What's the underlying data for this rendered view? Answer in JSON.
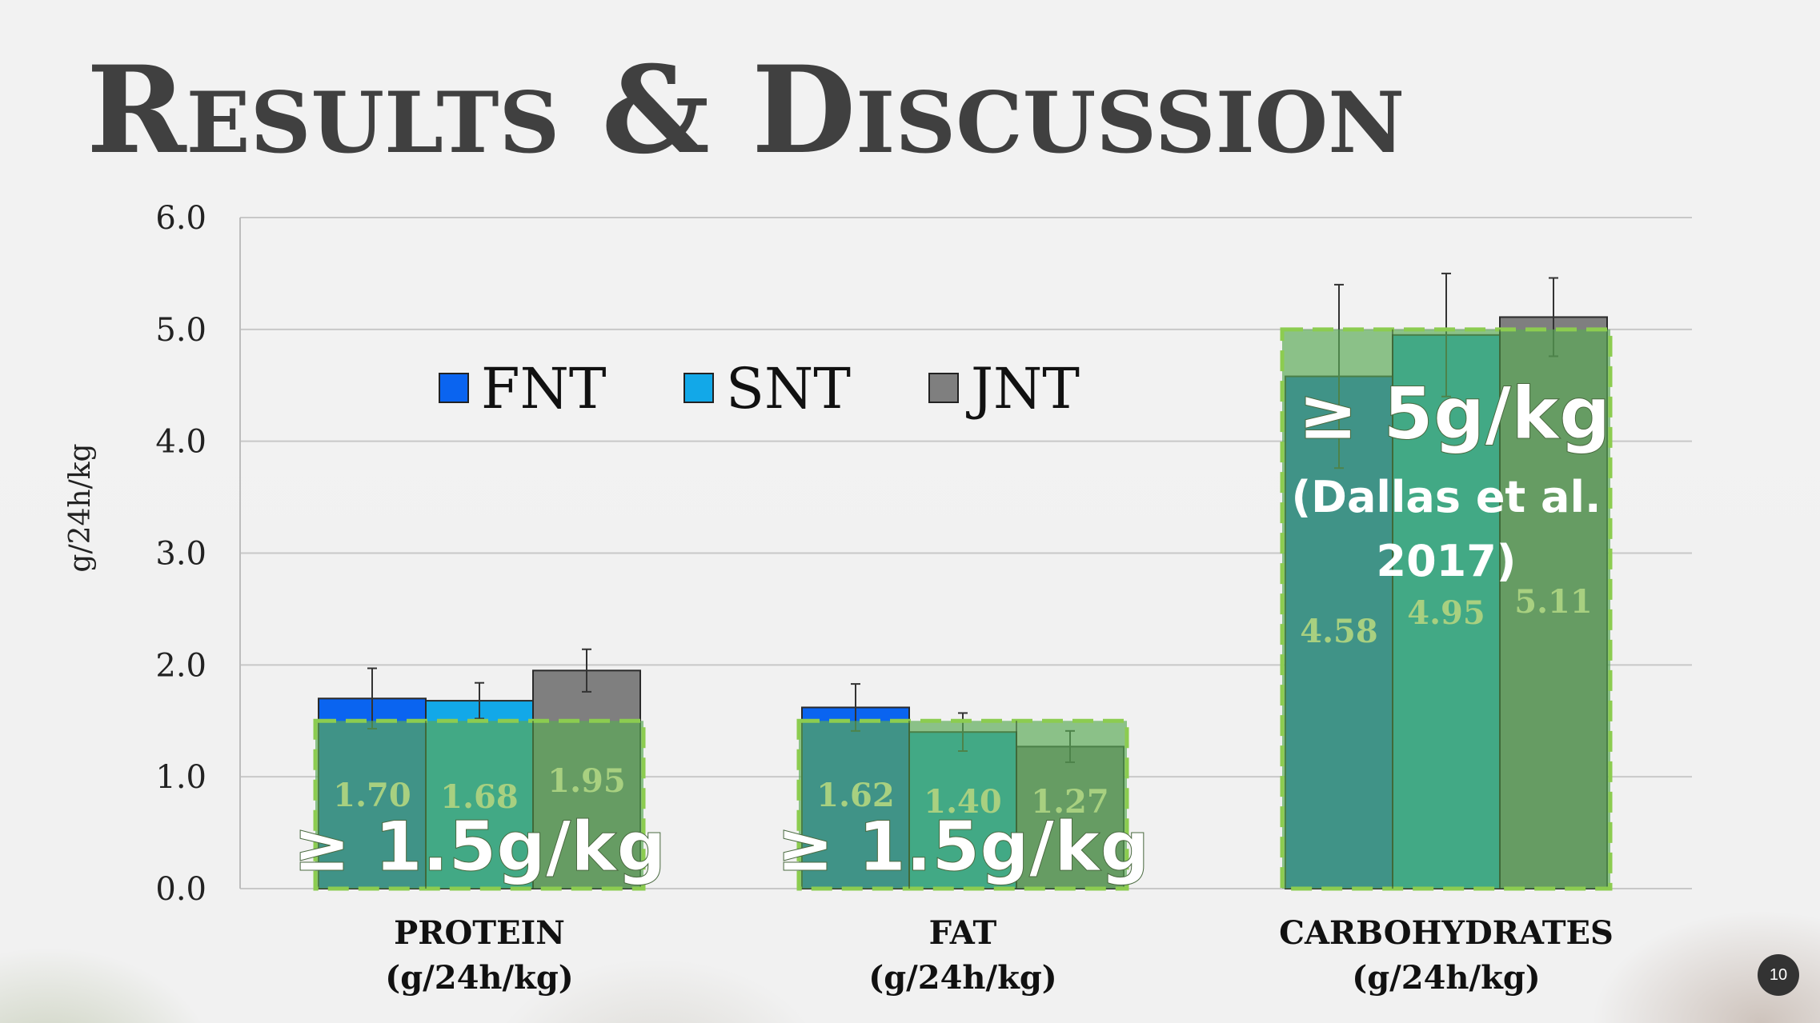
{
  "title": "Results & Discussion",
  "page_number": "10",
  "colors": {
    "FNT": "#0a64f0",
    "SNT": "#12a8e8",
    "JNT": "#7f7f7f",
    "overlay_fill": "#5aaa55",
    "overlay_border": "#8ccc50",
    "label_color": "#a8d080"
  },
  "chart_data": {
    "type": "bar",
    "ylabel": "g/24h/kg",
    "ylim": [
      0,
      6
    ],
    "yticks": [
      "0.0",
      "1.0",
      "2.0",
      "3.0",
      "4.0",
      "5.0",
      "6.0"
    ],
    "legend_position": "top-center",
    "grid": true,
    "categories": [
      {
        "line1": "PROTEIN",
        "line2": "(g/24h/kg)"
      },
      {
        "line1": "FAT",
        "line2": "(g/24h/kg)"
      },
      {
        "line1": "CARBOHYDRATES",
        "line2": "(g/24h/kg)"
      }
    ],
    "series": [
      {
        "name": "FNT",
        "values": [
          1.7,
          1.62,
          4.58
        ],
        "labels": [
          "1.70",
          "1.62",
          "4.58"
        ],
        "error": [
          0.27,
          0.21,
          0.82
        ]
      },
      {
        "name": "SNT",
        "values": [
          1.68,
          1.4,
          4.95
        ],
        "labels": [
          "1.68",
          "1.40",
          "4.95"
        ],
        "error": [
          0.16,
          0.17,
          0.55
        ]
      },
      {
        "name": "JNT",
        "values": [
          1.95,
          1.27,
          5.11
        ],
        "labels": [
          "1.95",
          "1.27",
          "5.11"
        ],
        "error": [
          0.19,
          0.14,
          0.35
        ]
      }
    ],
    "annotations": [
      {
        "category_index": 0,
        "threshold": 1.5,
        "text": "≥ 1.5g/kg"
      },
      {
        "category_index": 1,
        "threshold": 1.5,
        "text": "≥ 1.5g/kg"
      },
      {
        "category_index": 2,
        "threshold": 5.0,
        "text": "≥ 5g/kg",
        "sub_line1": "(Dallas et al.",
        "sub_line2": "2017)"
      }
    ]
  }
}
